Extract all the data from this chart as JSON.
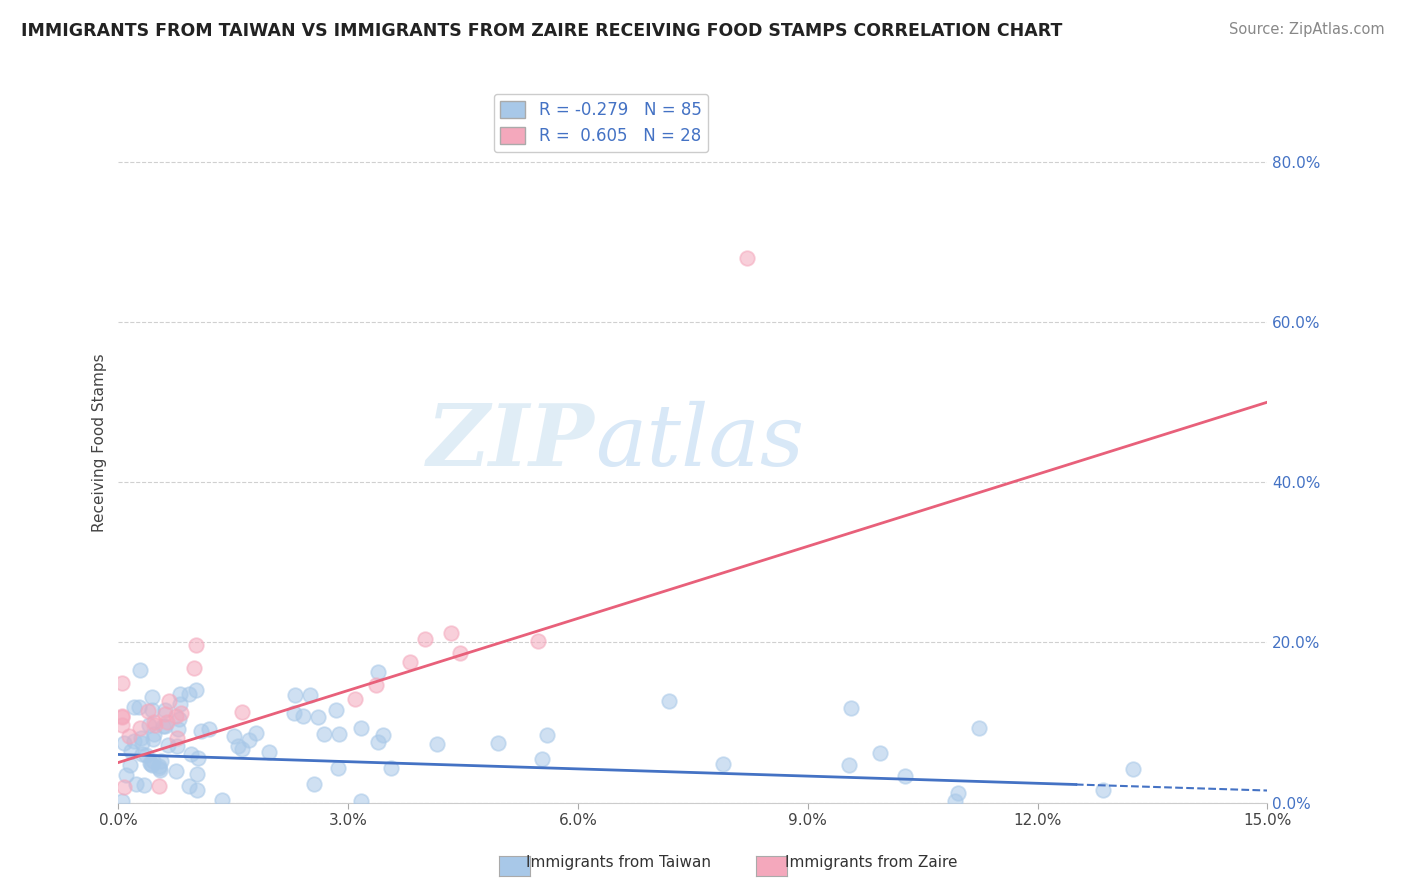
{
  "title": "IMMIGRANTS FROM TAIWAN VS IMMIGRANTS FROM ZAIRE RECEIVING FOOD STAMPS CORRELATION CHART",
  "source": "Source: ZipAtlas.com",
  "ylabel": "Receiving Food Stamps",
  "xlim": [
    0.0,
    15.0
  ],
  "ylim": [
    0.0,
    90.0
  ],
  "yticks_right": [
    0.0,
    20.0,
    40.0,
    60.0,
    80.0
  ],
  "xticks": [
    0.0,
    3.0,
    6.0,
    9.0,
    12.0,
    15.0
  ],
  "taiwan_R": -0.279,
  "taiwan_N": 85,
  "zaire_R": 0.605,
  "zaire_N": 28,
  "taiwan_color": "#a8c8e8",
  "zaire_color": "#f4a8bc",
  "taiwan_line_color": "#4472c4",
  "zaire_line_color": "#e8607a",
  "watermark_zip": "ZIP",
  "watermark_atlas": "atlas",
  "background_color": "#ffffff",
  "taiwan_line_x0": 0.0,
  "taiwan_line_y0": 6.0,
  "taiwan_line_x1": 15.0,
  "taiwan_line_y1": 1.5,
  "taiwan_line_solid_end": 12.5,
  "zaire_line_x0": 0.0,
  "zaire_line_y0": 5.0,
  "zaire_line_x1": 15.0,
  "zaire_line_y1": 50.0
}
